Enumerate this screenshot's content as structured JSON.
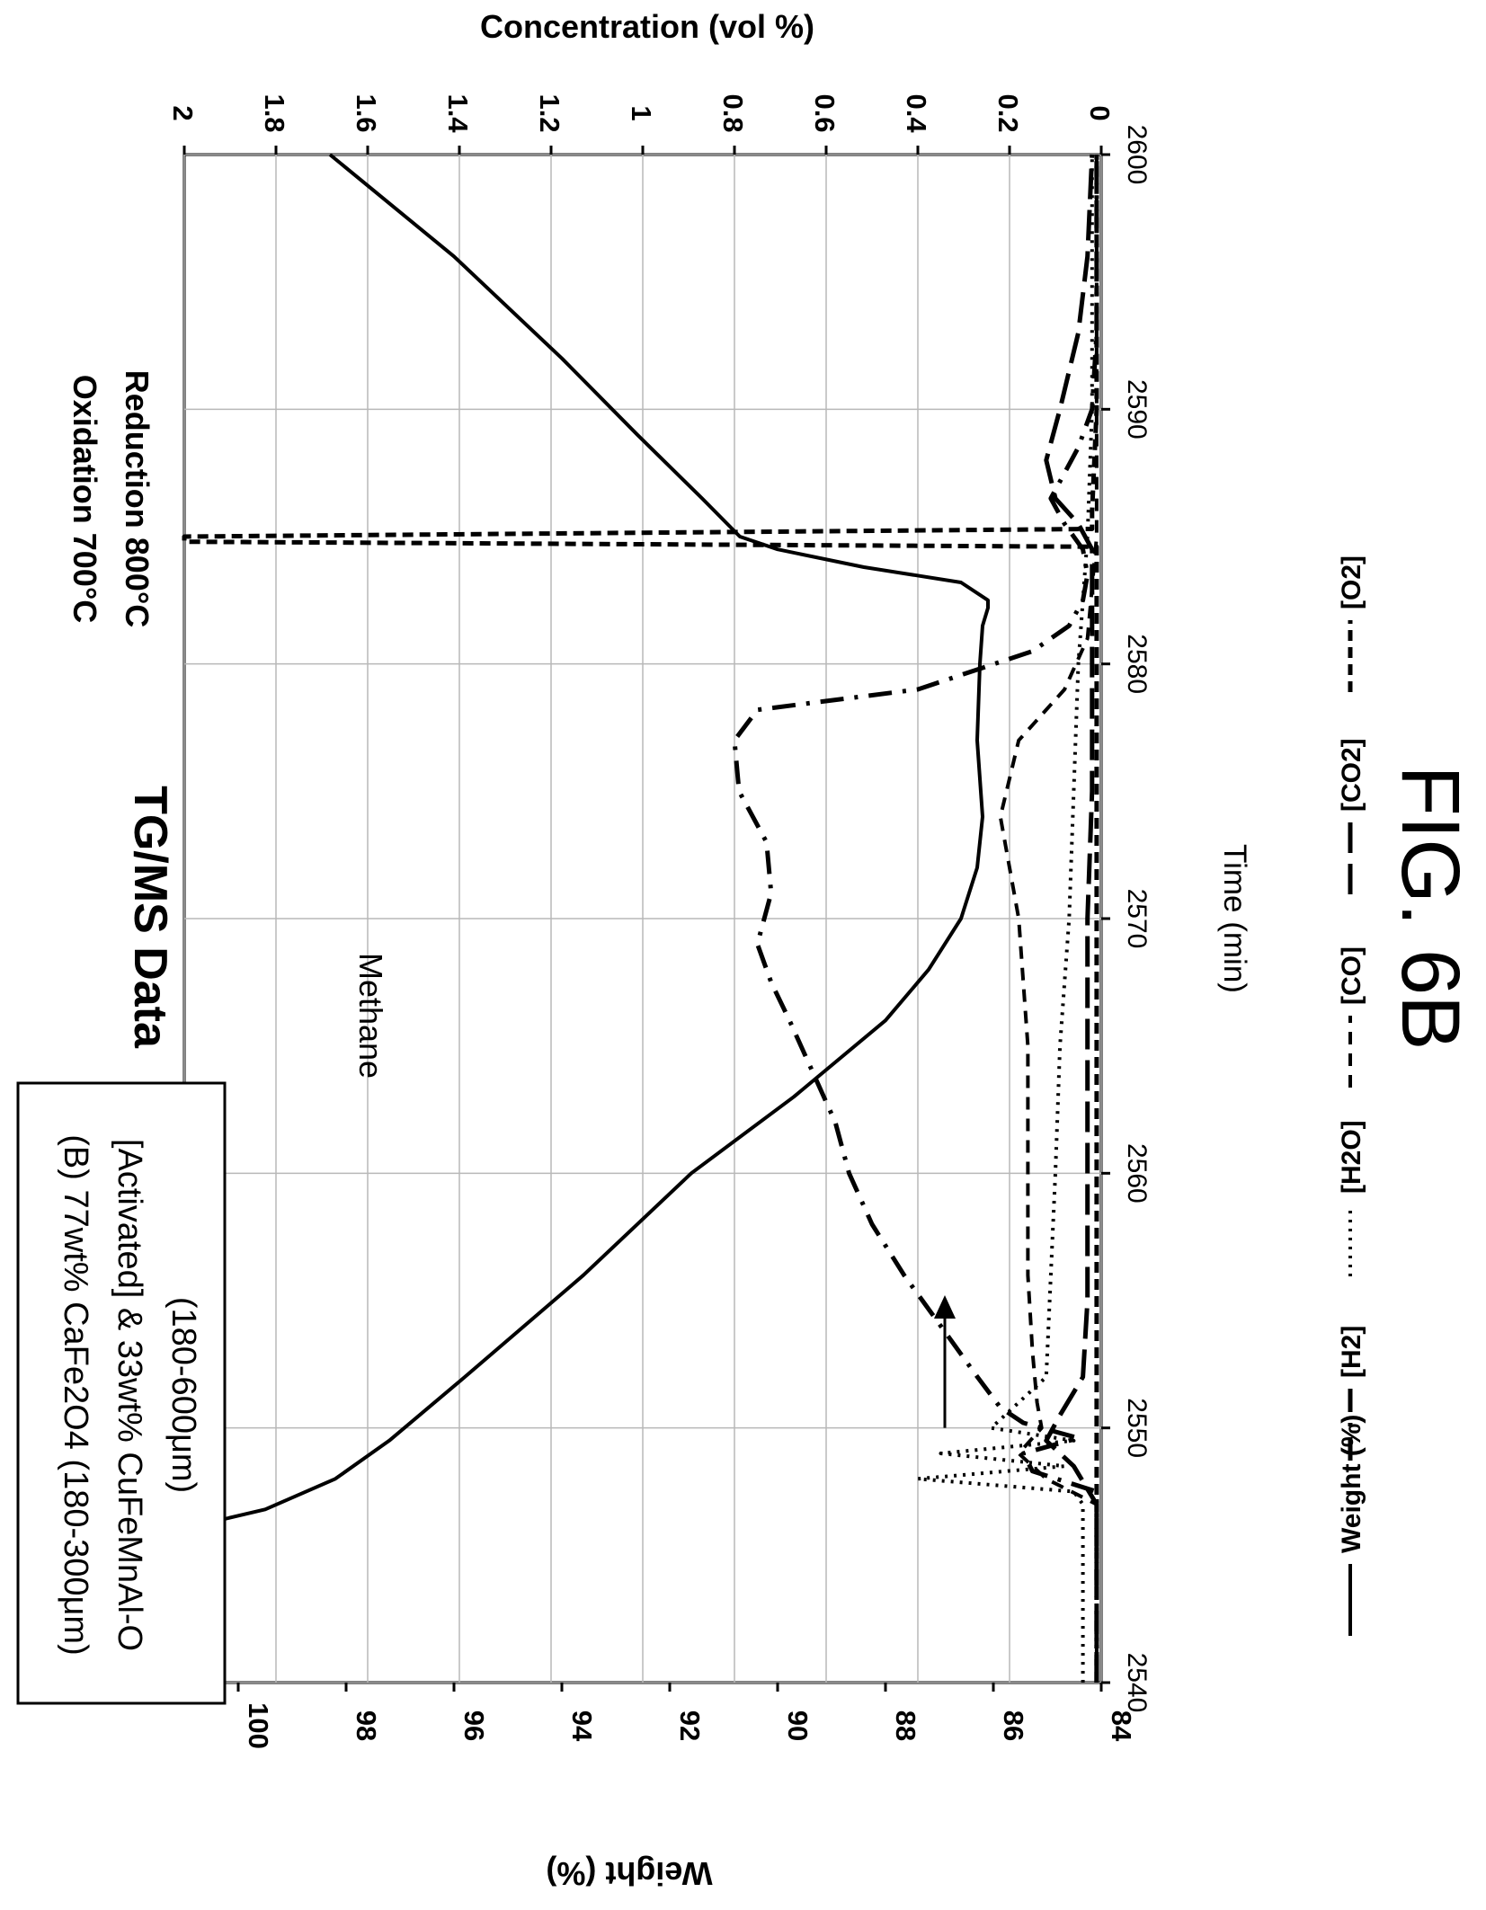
{
  "chart_data": {
    "type": "line",
    "orientation": "rotated-90-cw",
    "title": "TG/MS Data",
    "xlabel": "Time (min)",
    "ylabel": "Weight (%)",
    "y2label": "Concentration (vol %)",
    "xlim": [
      2540,
      2600
    ],
    "ylim": [
      84,
      101
    ],
    "y2lim": [
      0,
      2
    ],
    "x_ticks": [
      "2540",
      "2550",
      "2560",
      "2570",
      "2580",
      "2590",
      "2600"
    ],
    "y_ticks": [
      "84",
      "86",
      "88",
      "90",
      "92",
      "94",
      "96",
      "98",
      "100"
    ],
    "y2_ticks": [
      "0",
      "0.2",
      "0.4",
      "0.6",
      "0.8",
      "1",
      "1.2",
      "1.4",
      "1.6",
      "1.8",
      "2"
    ],
    "grid": true,
    "legend_position": "bottom",
    "sample_label": [
      "(B) 77wt% CaFe2O4 (180-300μm)",
      "[Activated] & 33wt% CuFeMnAl-O",
      "(180-600μm)"
    ],
    "annotations": {
      "methane": "Methane",
      "conditions": [
        "Oxidation 700°C",
        "Reduction 800°C"
      ],
      "arrow_x": [
        2550,
        2555
      ],
      "arrow_weight": 86.9
    },
    "series": [
      {
        "name": "Weight (%)",
        "axis": "weight",
        "style": "solid",
        "x": [
          2540,
          2542,
          2544,
          2545.5,
          2546.2,
          2546.8,
          2548,
          2549.5,
          2552,
          2556,
          2560,
          2563,
          2566,
          2568,
          2570,
          2572,
          2574,
          2577,
          2580,
          2581.5,
          2582.2,
          2582.5,
          2583.2,
          2583.8,
          2584.5,
          2585,
          2586.5,
          2589,
          2592,
          2596,
          2600
        ],
        "values": [
          100.9,
          100.9,
          100.95,
          100.9,
          100.7,
          99.5,
          98.2,
          97.2,
          95.8,
          93.6,
          91.6,
          89.7,
          88,
          87.2,
          86.6,
          86.3,
          86.2,
          86.3,
          86.25,
          86.2,
          86.1,
          86.1,
          86.6,
          88.4,
          90,
          90.7,
          91.4,
          92.6,
          94,
          96,
          98.3
        ]
      },
      {
        "name": "[H2]",
        "axis": "concentration",
        "style": "dash-dot",
        "x": [
          2540,
          2547.5,
          2548.3,
          2549,
          2549.6,
          2550.2,
          2550.8,
          2552,
          2554,
          2556,
          2558,
          2560,
          2562,
          2564,
          2566,
          2567.5,
          2569,
          2571,
          2573,
          2575,
          2577,
          2578.2,
          2579,
          2580.5,
          2581.5,
          2582.5,
          2583.5,
          2584.5,
          2585.5,
          2586.5,
          2587.5,
          2588.5,
          2590,
          2593,
          2596,
          2600
        ],
        "values": [
          0.01,
          0.01,
          0.15,
          0.17,
          0.05,
          0.17,
          0.22,
          0.27,
          0.35,
          0.43,
          0.5,
          0.55,
          0.58,
          0.63,
          0.68,
          0.72,
          0.75,
          0.72,
          0.73,
          0.79,
          0.8,
          0.75,
          0.4,
          0.15,
          0.07,
          0.04,
          0.03,
          0.04,
          0.08,
          0.11,
          0.08,
          0.05,
          0.02,
          0.01,
          0.01,
          0.01
        ]
      },
      {
        "name": "[H2O]",
        "axis": "concentration",
        "style": "dotted",
        "x": [
          2540,
          2547,
          2547.5,
          2548,
          2548.5,
          2549,
          2549.5,
          2550,
          2552,
          2556,
          2560,
          2565,
          2570,
          2575,
          2580,
          2585,
          2590,
          2595,
          2600
        ],
        "values": [
          0.04,
          0.04,
          0.06,
          0.4,
          0.08,
          0.35,
          0.06,
          0.24,
          0.12,
          0.11,
          0.1,
          0.09,
          0.07,
          0.06,
          0.05,
          0.03,
          0.02,
          0.02,
          0.02
        ]
      },
      {
        "name": "[CO]",
        "axis": "concentration",
        "style": "dashed",
        "x": [
          2540,
          2547,
          2548,
          2549,
          2550,
          2551,
          2553,
          2556,
          2560,
          2565,
          2570,
          2574,
          2577,
          2579,
          2581,
          2583,
          2585,
          2590,
          2600
        ],
        "values": [
          0.01,
          0.01,
          0.12,
          0.18,
          0.13,
          0.14,
          0.15,
          0.16,
          0.16,
          0.16,
          0.18,
          0.22,
          0.18,
          0.08,
          0.03,
          0.02,
          0.01,
          0.01,
          0.01
        ]
      },
      {
        "name": "[CO2]",
        "axis": "concentration",
        "style": "long-dash",
        "x": [
          2540,
          2547,
          2548.5,
          2549.5,
          2550.5,
          2552,
          2555,
          2560,
          2565,
          2570,
          2575,
          2580,
          2584.5,
          2585.5,
          2586.5,
          2588,
          2590,
          2593,
          2596,
          2600
        ],
        "values": [
          0.01,
          0.01,
          0.06,
          0.12,
          0.09,
          0.04,
          0.03,
          0.03,
          0.03,
          0.03,
          0.02,
          0.02,
          0.02,
          0.05,
          0.1,
          0.12,
          0.09,
          0.05,
          0.03,
          0.02
        ]
      },
      {
        "name": "[O2]",
        "axis": "concentration",
        "style": "short-dash",
        "x": [
          2540,
          2584.6,
          2584.8,
          2585,
          2585.3,
          2586,
          2590,
          2600
        ],
        "values": [
          0.01,
          0.01,
          2,
          2,
          0.02,
          0.02,
          0.01,
          0.01
        ]
      }
    ]
  },
  "figure_label": "FIG. 6B"
}
